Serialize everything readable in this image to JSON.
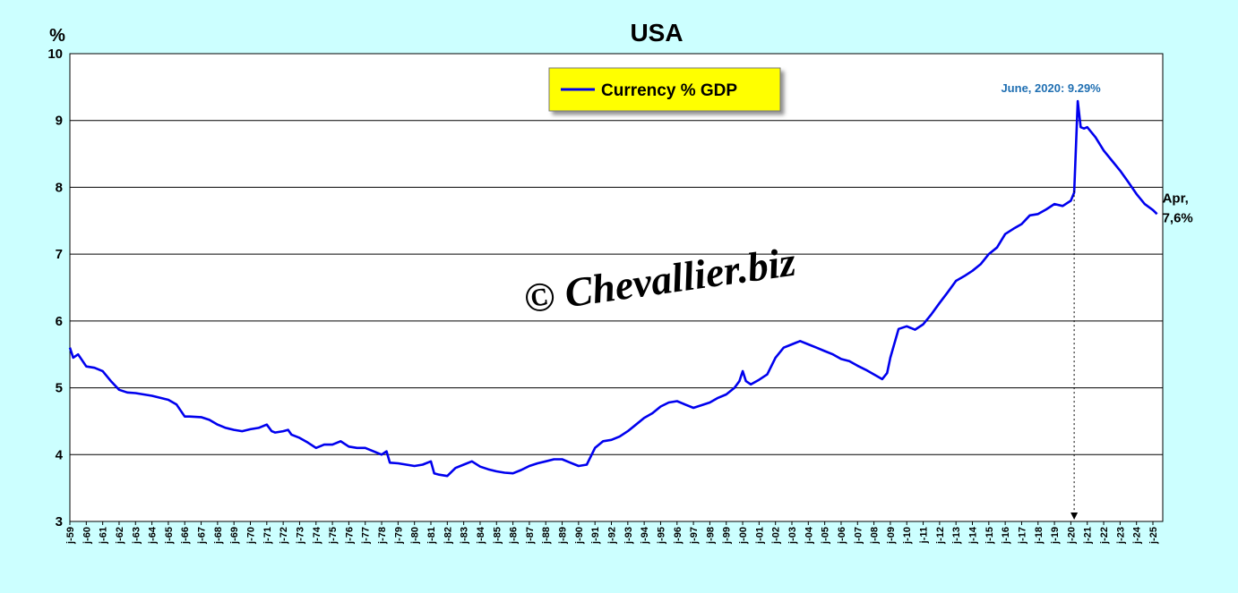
{
  "chart_data": {
    "type": "line",
    "title": "USA",
    "unit": "%",
    "ylim": [
      3,
      10
    ],
    "yticks": [
      3,
      4,
      5,
      6,
      7,
      8,
      9,
      10
    ],
    "grid": true,
    "legend": {
      "position": "top-center",
      "entries": [
        "Currency % GDP"
      ]
    },
    "watermark": "© Chevallier.biz",
    "xtick_labels": [
      "j-59",
      "j-60",
      "j-61",
      "j-62",
      "j-63",
      "j-64",
      "j-65",
      "j-66",
      "j-67",
      "j-68",
      "j-69",
      "j-70",
      "j-71",
      "j-72",
      "j-73",
      "j-74",
      "j-75",
      "j-76",
      "j-77",
      "j-78",
      "j-79",
      "j-80",
      "j-81",
      "j-82",
      "j-83",
      "j-84",
      "j-85",
      "j-86",
      "j-87",
      "j-88",
      "j-89",
      "j-90",
      "j-91",
      "j-92",
      "j-93",
      "j-94",
      "j-95",
      "j-96",
      "j-97",
      "j-98",
      "j-99",
      "j-00",
      "j-01",
      "j-02",
      "j-03",
      "j-04",
      "j-05",
      "j-06",
      "j-07",
      "j-08",
      "j-09",
      "j-10",
      "j-11",
      "j-12",
      "j-13",
      "j-14",
      "j-15",
      "j-16",
      "j-17",
      "j-18",
      "j-19",
      "j-20",
      "j-21",
      "j-22",
      "j-23",
      "j-24",
      "j-25"
    ],
    "series": [
      {
        "name": "Currency % GDP",
        "color": "#0000ee",
        "x": [
          1959.0,
          1959.2,
          1959.5,
          1960.0,
          1960.5,
          1961.0,
          1961.5,
          1962.0,
          1962.5,
          1963.0,
          1963.5,
          1964.0,
          1964.5,
          1965.0,
          1965.5,
          1966.0,
          1966.3,
          1967.0,
          1967.5,
          1968.0,
          1968.5,
          1969.0,
          1969.5,
          1970.0,
          1970.5,
          1971.0,
          1971.3,
          1971.5,
          1972.0,
          1972.3,
          1972.5,
          1973.0,
          1973.5,
          1974.0,
          1974.5,
          1975.0,
          1975.5,
          1976.0,
          1976.5,
          1977.0,
          1977.5,
          1978.0,
          1978.3,
          1978.5,
          1979.0,
          1979.5,
          1980.0,
          1980.5,
          1981.0,
          1981.2,
          1981.5,
          1982.0,
          1982.5,
          1983.0,
          1983.5,
          1984.0,
          1984.5,
          1985.0,
          1985.5,
          1986.0,
          1986.5,
          1987.0,
          1987.5,
          1988.0,
          1988.5,
          1989.0,
          1989.5,
          1990.0,
          1990.5,
          1991.0,
          1991.5,
          1992.0,
          1992.5,
          1993.0,
          1993.5,
          1994.0,
          1994.5,
          1995.0,
          1995.5,
          1996.0,
          1996.5,
          1997.0,
          1997.5,
          1998.0,
          1998.5,
          1999.0,
          1999.5,
          1999.8,
          2000.0,
          2000.2,
          2000.5,
          2001.0,
          2001.5,
          2002.0,
          2002.5,
          2003.0,
          2003.5,
          2004.0,
          2004.5,
          2005.0,
          2005.5,
          2006.0,
          2006.5,
          2007.0,
          2007.5,
          2008.0,
          2008.5,
          2008.8,
          2009.0,
          2009.5,
          2010.0,
          2010.5,
          2011.0,
          2011.5,
          2012.0,
          2012.5,
          2013.0,
          2013.5,
          2014.0,
          2014.5,
          2015.0,
          2015.5,
          2016.0,
          2016.5,
          2017.0,
          2017.5,
          2018.0,
          2018.5,
          2019.0,
          2019.5,
          2020.0,
          2020.2,
          2020.42,
          2020.6,
          2020.8,
          2021.0,
          2021.5,
          2022.0,
          2022.5,
          2023.0,
          2023.5,
          2024.0,
          2024.5,
          2025.0,
          2025.25
        ],
        "y": [
          5.6,
          5.45,
          5.5,
          5.32,
          5.3,
          5.25,
          5.1,
          4.97,
          4.93,
          4.92,
          4.9,
          4.88,
          4.85,
          4.82,
          4.75,
          4.57,
          4.57,
          4.56,
          4.52,
          4.45,
          4.4,
          4.37,
          4.35,
          4.38,
          4.4,
          4.45,
          4.35,
          4.33,
          4.35,
          4.37,
          4.3,
          4.25,
          4.18,
          4.1,
          4.15,
          4.15,
          4.2,
          4.12,
          4.1,
          4.1,
          4.05,
          4.0,
          4.05,
          3.88,
          3.87,
          3.85,
          3.83,
          3.85,
          3.9,
          3.72,
          3.7,
          3.68,
          3.8,
          3.85,
          3.9,
          3.82,
          3.78,
          3.75,
          3.73,
          3.72,
          3.77,
          3.83,
          3.87,
          3.9,
          3.93,
          3.93,
          3.88,
          3.83,
          3.85,
          4.1,
          4.2,
          4.22,
          4.27,
          4.35,
          4.45,
          4.55,
          4.62,
          4.72,
          4.78,
          4.8,
          4.75,
          4.7,
          4.74,
          4.78,
          4.85,
          4.9,
          5.0,
          5.1,
          5.25,
          5.1,
          5.05,
          5.12,
          5.2,
          5.45,
          5.6,
          5.65,
          5.7,
          5.65,
          5.6,
          5.55,
          5.5,
          5.43,
          5.4,
          5.33,
          5.27,
          5.2,
          5.13,
          5.22,
          5.45,
          5.88,
          5.92,
          5.87,
          5.95,
          6.1,
          6.27,
          6.43,
          6.6,
          6.67,
          6.75,
          6.85,
          7.0,
          7.1,
          7.3,
          7.38,
          7.45,
          7.58,
          7.6,
          7.67,
          7.75,
          7.72,
          7.8,
          7.92,
          9.29,
          8.9,
          8.88,
          8.9,
          8.75,
          8.55,
          8.4,
          8.25,
          8.08,
          7.9,
          7.75,
          7.66,
          7.6
        ]
      }
    ],
    "annotations": {
      "peak": {
        "label": "June, 2020: 9.29%",
        "x": 2020.42,
        "y": 9.29
      },
      "last": {
        "line1": "Apr,",
        "line2": "7,6%",
        "x": 2025.25,
        "y": 7.6
      }
    }
  }
}
